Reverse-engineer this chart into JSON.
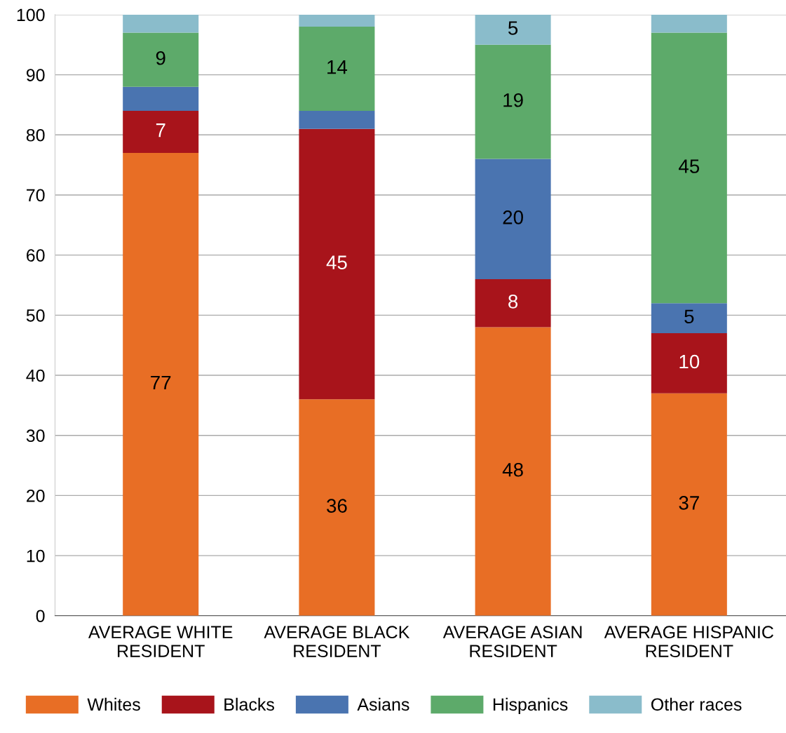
{
  "chart_data": {
    "type": "bar",
    "stacked": true,
    "categories": [
      "AVERAGE WHITE\nRESIDENT",
      "AVERAGE BLACK\nRESIDENT",
      "AVERAGE ASIAN\nRESIDENT",
      "AVERAGE HISPANIC\nRESIDENT"
    ],
    "series": [
      {
        "name": "Whites",
        "color": "#e86e25",
        "values": [
          77,
          36,
          48,
          37
        ],
        "value_labels": [
          "77",
          "36",
          "48",
          "37"
        ]
      },
      {
        "name": "Blacks",
        "color": "#a8141b",
        "values": [
          7,
          45,
          8,
          10
        ],
        "value_labels": [
          "7",
          "45",
          "8",
          "10"
        ]
      },
      {
        "name": "Asians",
        "color": "#4a74b0",
        "values": [
          4,
          3,
          20,
          5
        ],
        "value_labels": [
          null,
          null,
          "20",
          "5"
        ]
      },
      {
        "name": "Hispanics",
        "color": "#5daa6a",
        "values": [
          9,
          14,
          19,
          45
        ],
        "value_labels": [
          "9",
          "14",
          "19",
          "45"
        ]
      },
      {
        "name": "Other races",
        "color": "#8abccb",
        "values": [
          3,
          2,
          5,
          3
        ],
        "value_labels": [
          null,
          null,
          "5",
          null
        ]
      }
    ],
    "ylim": [
      0,
      100
    ],
    "yticks": [
      0,
      10,
      20,
      30,
      40,
      50,
      60,
      70,
      80,
      90,
      100
    ],
    "grid": "y",
    "legend": "bottom"
  }
}
